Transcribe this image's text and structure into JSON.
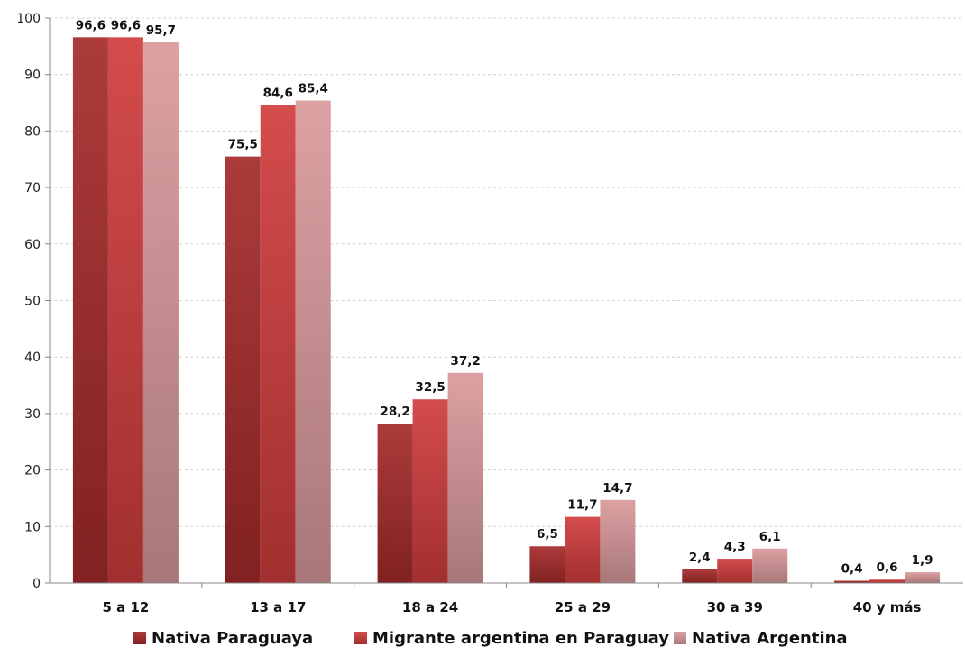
{
  "chart_data": {
    "type": "bar",
    "title": "",
    "xlabel": "",
    "ylabel": "",
    "ylim": [
      0,
      100
    ],
    "yticks": [
      0,
      10,
      20,
      30,
      40,
      50,
      60,
      70,
      80,
      90,
      100
    ],
    "grid": true,
    "legend_position": "bottom",
    "categories": [
      "5 a 12",
      "13 a 17",
      "18 a 24",
      "25 a 29",
      "30 a 39",
      "40 y más"
    ],
    "series": [
      {
        "name": "Nativa Paraguaya",
        "color": "#a52a2a",
        "values": [
          96.6,
          75.5,
          28.2,
          6.5,
          2.4,
          0.4
        ],
        "labels": [
          "96,6",
          "75,5",
          "28,2",
          "6,5",
          "2,4",
          "0,4"
        ]
      },
      {
        "name": "Migrante argentina en Paraguay",
        "color": "#d03c3c",
        "values": [
          96.6,
          84.6,
          32.5,
          11.7,
          4.3,
          0.6
        ],
        "labels": [
          "96,6",
          "84,6",
          "32,5",
          "11,7",
          "4,3",
          "0,6"
        ]
      },
      {
        "name": "Nativa Argentina",
        "color": "#d9999b",
        "values": [
          95.7,
          85.4,
          37.2,
          14.7,
          6.1,
          1.9
        ],
        "labels": [
          "95,7",
          "85,4",
          "37,2",
          "14,7",
          "6,1",
          "1,9"
        ]
      }
    ]
  }
}
